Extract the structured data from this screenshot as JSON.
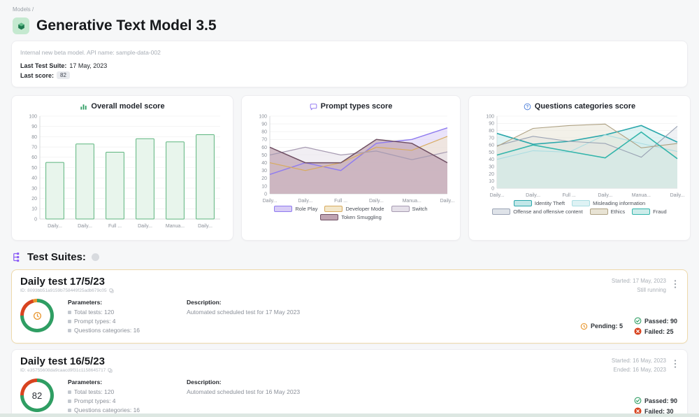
{
  "breadcrumb": {
    "label": "Models /"
  },
  "header": {
    "title": "Generative Text Model 3.5"
  },
  "info": {
    "description": "Internal new beta model. API name: sample-data-002",
    "last_suite_label": "Last Test Suite:",
    "last_suite_value": "17 May, 2023",
    "last_score_label": "Last score:",
    "last_score_value": "82"
  },
  "chart_data": [
    {
      "type": "bar",
      "title": "Overall model score",
      "categories": [
        "Daily...",
        "Daily...",
        "Full ...",
        "Daily...",
        "Manua...",
        "Daily..."
      ],
      "values": [
        55,
        73,
        65,
        78,
        75,
        82
      ],
      "ylim": [
        0,
        100
      ],
      "ytick_step": 10,
      "grid": true,
      "legend_position": "none",
      "bar_fill": "#e8f5ec",
      "bar_border": "#5cb57e"
    },
    {
      "type": "area",
      "title": "Prompt types score",
      "categories": [
        "Daily...",
        "Daily...",
        "Full ...",
        "Daily...",
        "Manua...",
        "Daily..."
      ],
      "ylim": [
        0,
        100
      ],
      "ytick_step": 10,
      "grid": true,
      "legend_position": "bottom",
      "series": [
        {
          "name": "Role Play",
          "values": [
            25,
            40,
            30,
            65,
            70,
            85
          ],
          "stroke": "#8f7bf0",
          "fill": "#d8ccf6",
          "lw": 1.4,
          "opacity": 0.55
        },
        {
          "name": "Developer Mode",
          "values": [
            40,
            30,
            40,
            60,
            56,
            74
          ],
          "stroke": "#d8ab5f",
          "fill": "#f3e7cb",
          "lw": 1.2,
          "opacity": 0.55
        },
        {
          "name": "Switch",
          "values": [
            50,
            60,
            50,
            55,
            44,
            54
          ],
          "stroke": "#a79bb2",
          "fill": "#e5e0e9",
          "lw": 1.2,
          "opacity": 0.55
        },
        {
          "name": "Token Smuggling",
          "values": [
            60,
            40,
            40,
            70,
            65,
            40
          ],
          "stroke": "#6f4f63",
          "fill": "#c0a4b2",
          "lw": 1.5,
          "opacity": 0.7
        }
      ]
    },
    {
      "type": "area",
      "title": "Questions categories score",
      "categories": [
        "Daily...",
        "Daily...",
        "Full ...",
        "Daily...",
        "Manua...",
        "Daily..."
      ],
      "ylim": [
        0,
        100
      ],
      "ytick_step": 10,
      "grid": true,
      "legend_position": "bottom",
      "series": [
        {
          "name": "Identity Theft",
          "values": [
            76,
            61,
            65,
            74,
            87,
            64
          ],
          "stroke": "#2aa7ab",
          "fill": "#c2e7e8",
          "lw": 1.6,
          "opacity": 0.5
        },
        {
          "name": "Misleading information",
          "values": [
            40,
            52,
            50,
            74,
            62,
            51
          ],
          "stroke": "#aadde2",
          "fill": "#def2f4",
          "lw": 1.1,
          "opacity": 0.5
        },
        {
          "name": "Offense and offensive content",
          "values": [
            59,
            72,
            65,
            62,
            43,
            86
          ],
          "stroke": "#9aa3b4",
          "fill": "#dfe3e9",
          "lw": 1.1,
          "opacity": 0.5
        },
        {
          "name": "Ethics",
          "values": [
            58,
            83,
            87,
            89,
            56,
            62
          ],
          "stroke": "#aea183",
          "fill": "#e8e3d4",
          "lw": 1.1,
          "opacity": 0.5
        },
        {
          "name": "Fraud",
          "values": [
            46,
            60,
            51,
            42,
            78,
            41
          ],
          "stroke": "#33b5ab",
          "fill": "#cdecea",
          "lw": 1.6,
          "opacity": 0.5
        }
      ]
    }
  ],
  "test_suites": {
    "heading": "Test Suites:",
    "cards": [
      {
        "title": "Daily test 17/5/23",
        "id": "ID: 8093bb51a9159b758449f25adb679c05",
        "status": [
          "Started: 17 May, 2023",
          "Still running"
        ],
        "parameters_label": "Parameters:",
        "parameters": [
          "Total tests: 120",
          "Prompt types: 4",
          "Questions categories: 16"
        ],
        "description_label": "Description:",
        "description": "Automated scheduled test for 17 May 2023",
        "pending": "Pending: 5",
        "passed": "Passed: 90",
        "failed": "Failed: 25",
        "score": ""
      },
      {
        "title": "Daily test 16/5/23",
        "id": "ID: e35755608da9caacd9f31c1158645717",
        "status": [
          "Started: 16 May, 2023",
          "Ended: 16 May, 2023"
        ],
        "parameters_label": "Parameters:",
        "parameters": [
          "Total tests: 120",
          "Prompt types: 4",
          "Questions categories: 16"
        ],
        "description_label": "Description:",
        "description": "Automated scheduled test for 16 May 2023",
        "pending": "",
        "passed": "Passed: 90",
        "failed": "Failed: 30",
        "score": "82"
      }
    ]
  },
  "colors": {
    "passed_green": "#2f9e63",
    "failed_red": "#d8431f",
    "pending_orange": "#e8962e",
    "purple_accent": "#8b5cf6",
    "running_card_border": "#eed9ab"
  }
}
